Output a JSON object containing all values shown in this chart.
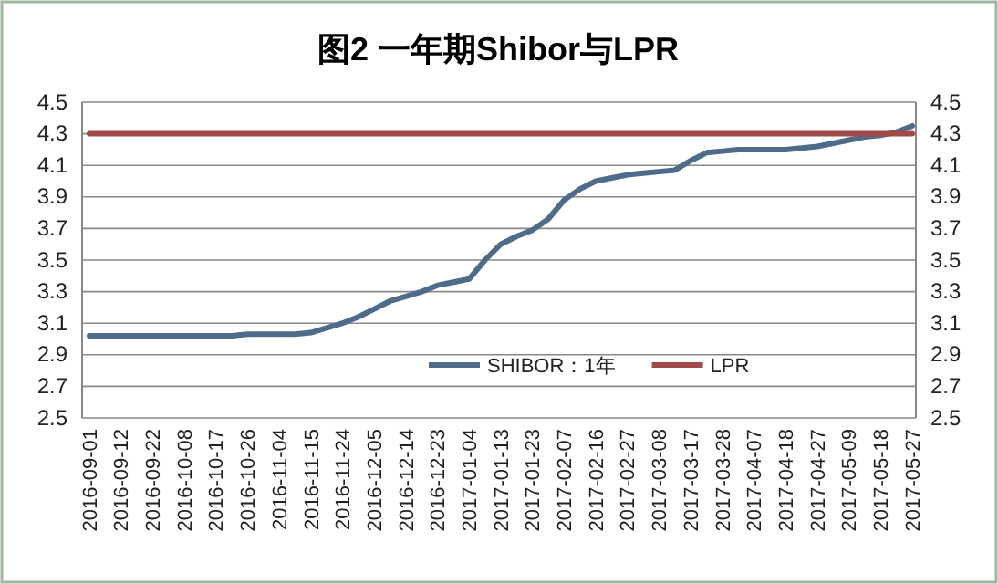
{
  "chart_data": {
    "type": "line",
    "title": "图2 一年期Shibor与LPR",
    "categories": [
      "2016-09-01",
      null,
      "2016-09-12",
      null,
      "2016-09-22",
      null,
      "2016-10-08",
      null,
      "2016-10-17",
      null,
      "2016-10-26",
      null,
      "2016-11-04",
      null,
      "2016-11-15",
      null,
      "2016-11-24",
      null,
      "2016-12-05",
      null,
      "2016-12-14",
      null,
      "2016-12-23",
      null,
      "2017-01-04",
      null,
      "2017-01-13",
      null,
      "2017-01-23",
      null,
      "2017-02-07",
      null,
      "2017-02-16",
      null,
      "2017-02-27",
      null,
      "2017-03-08",
      null,
      "2017-03-17",
      null,
      "2017-03-28",
      null,
      "2017-04-07",
      null,
      "2017-04-18",
      null,
      "2017-04-27",
      null,
      "2017-05-09",
      null,
      "2017-05-18",
      null,
      "2017-05-27"
    ],
    "series": [
      {
        "name": "SHIBOR：1年",
        "color": "#4f6b8a",
        "values": [
          3.02,
          3.02,
          3.02,
          3.02,
          3.02,
          3.02,
          3.02,
          3.02,
          3.02,
          3.02,
          3.03,
          3.03,
          3.03,
          3.03,
          3.04,
          3.07,
          3.1,
          3.14,
          3.19,
          3.24,
          3.27,
          3.3,
          3.34,
          3.36,
          3.38,
          3.5,
          3.6,
          3.65,
          3.69,
          3.76,
          3.88,
          3.95,
          4.0,
          4.02,
          4.04,
          4.05,
          4.06,
          4.07,
          4.13,
          4.18,
          4.19,
          4.2,
          4.2,
          4.2,
          4.2,
          4.21,
          4.22,
          4.24,
          4.26,
          4.28,
          4.29,
          4.31,
          4.35
        ]
      },
      {
        "name": "LPR",
        "color": "#a04a4a",
        "values": [
          4.3,
          4.3,
          4.3,
          4.3,
          4.3,
          4.3,
          4.3,
          4.3,
          4.3,
          4.3,
          4.3,
          4.3,
          4.3,
          4.3,
          4.3,
          4.3,
          4.3,
          4.3,
          4.3,
          4.3,
          4.3,
          4.3,
          4.3,
          4.3,
          4.3,
          4.3,
          4.3,
          4.3,
          4.3,
          4.3,
          4.3,
          4.3,
          4.3,
          4.3,
          4.3,
          4.3,
          4.3,
          4.3,
          4.3,
          4.3,
          4.3,
          4.3,
          4.3,
          4.3,
          4.3,
          4.3,
          4.3,
          4.3,
          4.3,
          4.3,
          4.3,
          4.3,
          4.3
        ]
      }
    ],
    "ylim": [
      2.5,
      4.5
    ],
    "yticks": [
      2.5,
      2.7,
      2.9,
      3.1,
      3.3,
      3.5,
      3.7,
      3.9,
      4.1,
      4.3,
      4.5
    ],
    "y2lim": [
      2.5,
      4.5
    ],
    "y2ticks": [
      2.5,
      2.7,
      2.9,
      3.1,
      3.3,
      3.5,
      3.7,
      3.9,
      4.1,
      4.3,
      4.5
    ],
    "grid": "y",
    "legend": "bottom",
    "marker": "none",
    "line_style": "solid"
  }
}
